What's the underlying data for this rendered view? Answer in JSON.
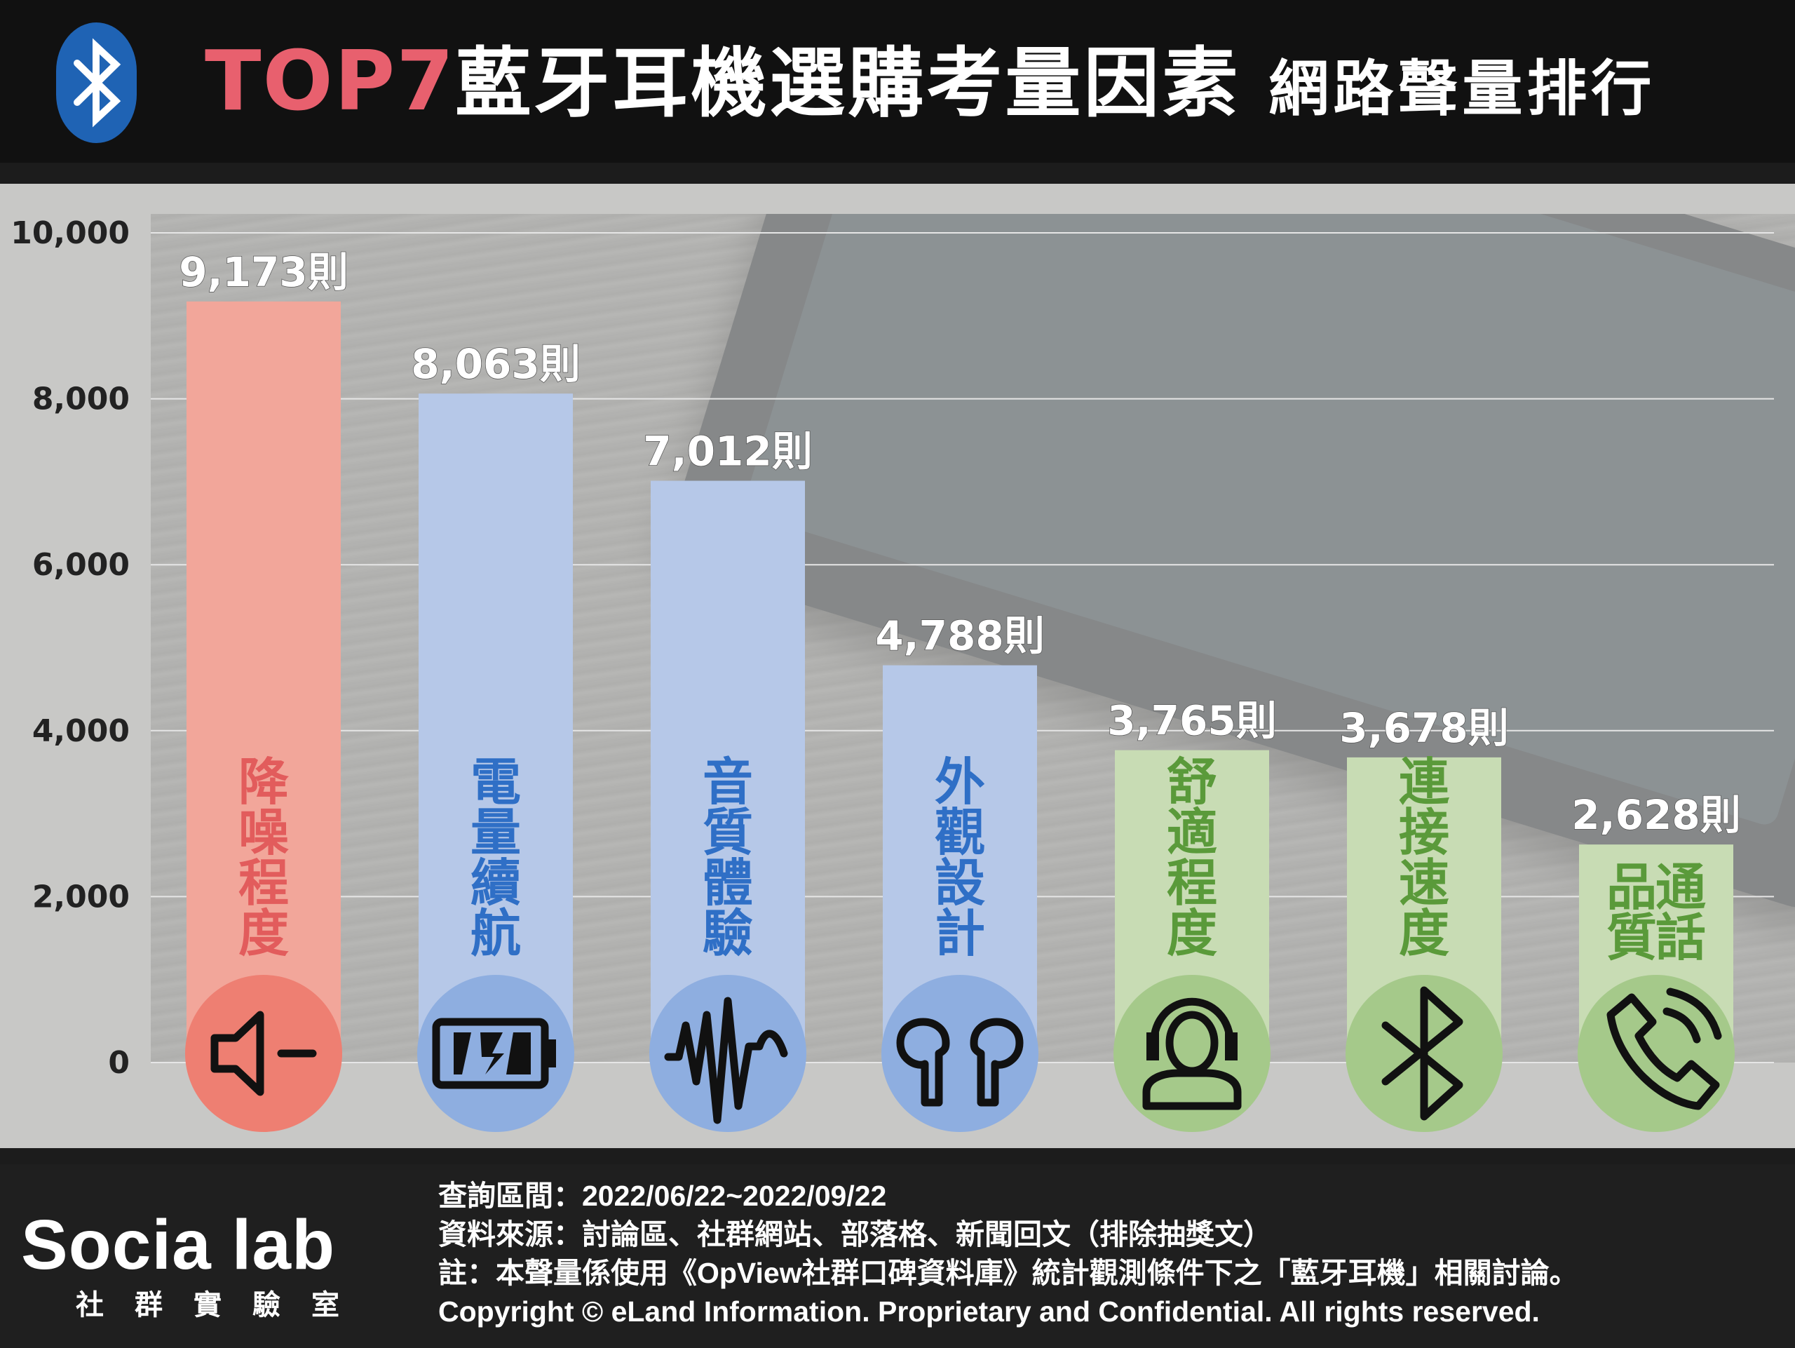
{
  "header": {
    "title_accent": "TOP7",
    "title_main": "藍牙耳機選購考量因素",
    "title_sub": "網路聲量排行",
    "logo_icon": "bluetooth-icon"
  },
  "colors": {
    "header_bg": "#111111",
    "title_accent": "#e8606e",
    "red_bar": "#f2a69a",
    "red_circle": "#ee7f72",
    "red_label": "#e25c5c",
    "blue_bar": "#b6c8e8",
    "blue_circle": "#8eaee0",
    "blue_label": "#2f6fc6",
    "green_bar": "#c8dcb4",
    "green_circle": "#a5c98a",
    "green_label": "#5a9a3a"
  },
  "chart_data": {
    "type": "bar",
    "title": "TOP7藍牙耳機選購考量因素 網路聲量排行",
    "ylim": [
      0,
      10000
    ],
    "yticks": [
      "0",
      "2,000",
      "4,000",
      "6,000",
      "8,000",
      "10,000"
    ],
    "grid": true,
    "categories": [
      "降噪程度",
      "電量續航",
      "音質體驗",
      "外觀設計",
      "舒適程度",
      "連接速度",
      "通話品質"
    ],
    "values": [
      9173,
      8063,
      7012,
      4788,
      3765,
      3678,
      2628
    ],
    "data_labels": [
      "9,173則",
      "8,063則",
      "7,012則",
      "4,788則",
      "3,765則",
      "3,678則",
      "2,628則"
    ],
    "groups": [
      "red",
      "blue",
      "blue",
      "blue",
      "green",
      "green",
      "green"
    ],
    "icons": [
      "speaker-icon",
      "battery-icon",
      "sound-wave-icon",
      "earbuds-icon",
      "headset-person-icon",
      "bluetooth-icon",
      "phone-call-icon"
    ]
  },
  "footer": {
    "logo_word": "Socia lab",
    "logo_sub": "社群實驗室",
    "notes": [
      "查詢區間：2022/06/22~2022/09/22",
      "資料來源：討論區、社群網站、部落格、新聞回文（排除抽獎文）",
      "註：本聲量係使用《OpView社群口碑資料庫》統計觀測條件下之「藍牙耳機」相關討論。",
      "Copyright © eLand Information. Proprietary and Confidential. All rights reserved."
    ]
  }
}
